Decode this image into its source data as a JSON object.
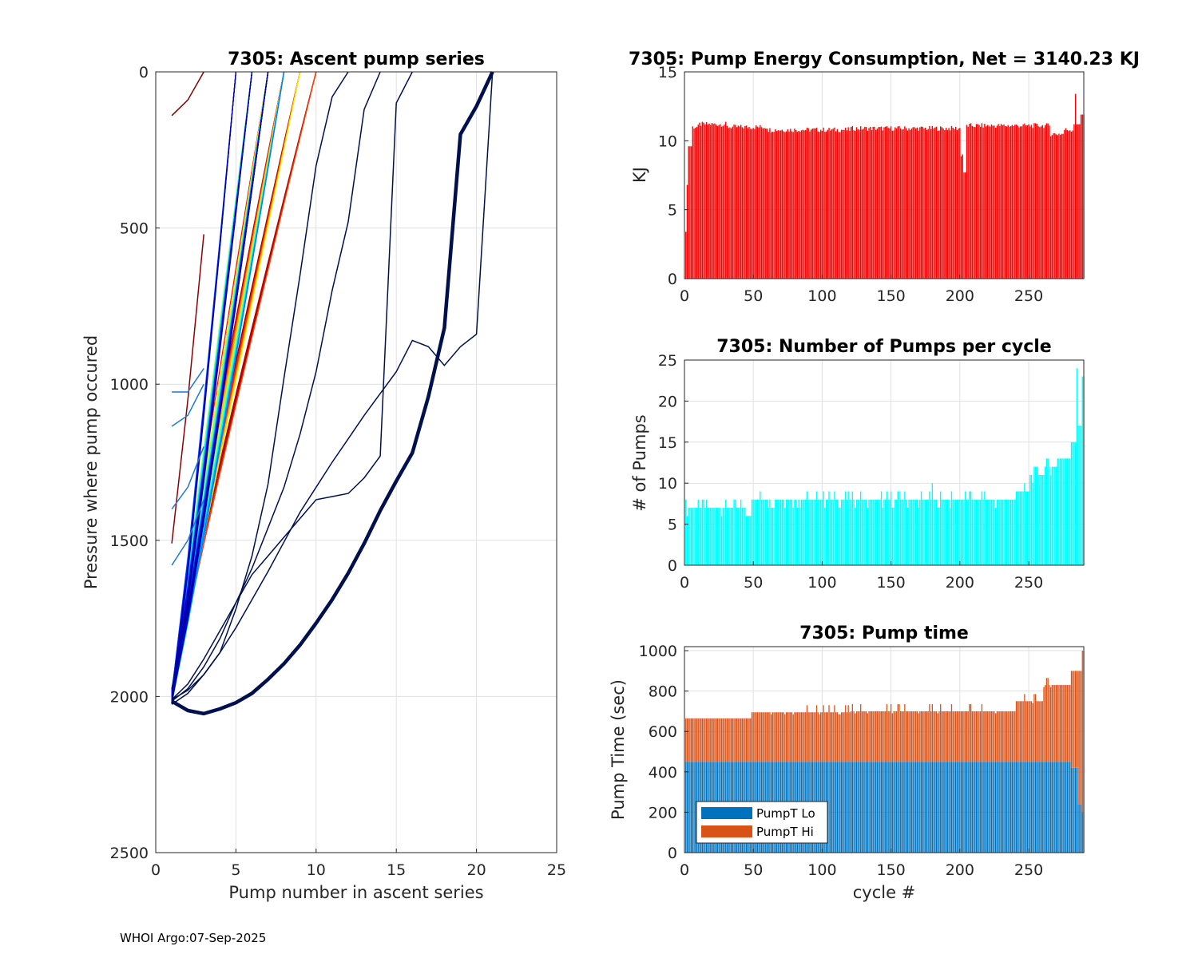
{
  "footer": "WHOI Argo:07-Sep-2025",
  "colors": {
    "energy": "#ff0000",
    "pumps": "#00ffff",
    "pump_lo": "#0072bd",
    "pump_hi": "#d95319",
    "thick_series": "#00104d",
    "grid": "#e1e1e1",
    "axis": "#262626"
  },
  "chart_data": [
    {
      "id": "ascent",
      "type": "line",
      "title": "7305: Ascent pump series",
      "xlabel": "Pump number in ascent series",
      "ylabel": "Pressure where pump occured",
      "xlim": [
        0,
        25
      ],
      "ylim": [
        0,
        2500
      ],
      "y_reversed": true,
      "xticks": [
        0,
        5,
        10,
        15,
        20,
        25
      ],
      "yticks": [
        0,
        500,
        1000,
        1500,
        2000,
        2500
      ],
      "grid": true,
      "colormap": "jet",
      "highlight_series": {
        "name": "widest series",
        "x": [
          1,
          2,
          3,
          4,
          5,
          6,
          7,
          8,
          9,
          10,
          11,
          12,
          13,
          14,
          15,
          16,
          17,
          18,
          19,
          20,
          21
        ],
        "y": [
          2015,
          2045,
          2055,
          2040,
          2020,
          1990,
          1945,
          1895,
          1835,
          1765,
          1690,
          1605,
          1510,
          1405,
          1310,
          1220,
          1040,
          820,
          200,
          110,
          0
        ]
      },
      "outlier_series": [
        {
          "x": [
            1,
            2,
            3,
            4,
            5,
            6,
            7,
            8,
            9,
            10,
            11,
            12,
            13,
            14,
            15,
            16,
            17,
            18,
            19,
            20,
            21
          ],
          "y": [
            2025,
            1990,
            1930,
            1860,
            1780,
            1690,
            1600,
            1505,
            1410,
            1330,
            1250,
            1175,
            1100,
            1030,
            960,
            860,
            880,
            940,
            880,
            840,
            0
          ]
        },
        {
          "x": [
            1,
            2,
            3,
            4,
            5,
            6,
            7,
            8,
            9,
            10,
            11,
            12,
            13,
            14,
            15,
            16
          ],
          "y": [
            2010,
            1960,
            1880,
            1790,
            1700,
            1610,
            1550,
            1490,
            1430,
            1370,
            1360,
            1350,
            1300,
            1230,
            100,
            0
          ]
        },
        {
          "x": [
            1,
            2,
            3,
            4,
            5,
            6,
            7,
            8,
            9,
            10,
            11,
            12,
            13,
            14
          ],
          "y": [
            2015,
            1975,
            1905,
            1815,
            1700,
            1590,
            1460,
            1330,
            1160,
            960,
            700,
            480,
            120,
            0
          ]
        },
        {
          "x": [
            1,
            2,
            3,
            4,
            5,
            6,
            7,
            8,
            9,
            10,
            11,
            12
          ],
          "y": [
            2010,
            1980,
            1930,
            1860,
            1720,
            1550,
            1320,
            980,
            650,
            300,
            80,
            0
          ]
        }
      ],
      "series_summary": "about 290 ascent series, one per cycle, colored by cycle number; most reach the surface after 5 to 9 pumps"
    },
    {
      "id": "energy",
      "type": "bar",
      "title": "7305: Pump Energy Consumption,  Net = 3140.23 KJ",
      "xlabel": "",
      "ylabel": "KJ",
      "xlim": [
        0,
        290
      ],
      "ylim": [
        0,
        15
      ],
      "xticks": [
        0,
        50,
        100,
        150,
        200,
        250
      ],
      "yticks": [
        0,
        5,
        10,
        15
      ],
      "grid": true,
      "net_total_kj": 3140.23,
      "segments": [
        {
          "from": 1,
          "to": 1,
          "value": 3.4
        },
        {
          "from": 2,
          "to": 2,
          "value": 6.8
        },
        {
          "from": 3,
          "to": 5,
          "value": 9.6
        },
        {
          "from": 6,
          "to": 10,
          "value": 11.0
        },
        {
          "from": 11,
          "to": 30,
          "value": 11.2
        },
        {
          "from": 31,
          "to": 60,
          "value": 11.0
        },
        {
          "from": 61,
          "to": 120,
          "value": 10.8
        },
        {
          "from": 121,
          "to": 200,
          "value": 10.9
        },
        {
          "from": 201,
          "to": 202,
          "value": 9.0
        },
        {
          "from": 203,
          "to": 204,
          "value": 7.7
        },
        {
          "from": 205,
          "to": 265,
          "value": 11.1
        },
        {
          "from": 266,
          "to": 275,
          "value": 10.5
        },
        {
          "from": 276,
          "to": 282,
          "value": 10.8
        },
        {
          "from": 283,
          "to": 283,
          "value": 11.2
        },
        {
          "from": 284,
          "to": 284,
          "value": 13.4
        },
        {
          "from": 285,
          "to": 287,
          "value": 11.2
        },
        {
          "from": 288,
          "to": 290,
          "value": 11.9
        }
      ]
    },
    {
      "id": "pumps",
      "type": "bar",
      "title": "7305: Number of Pumps per cycle",
      "xlabel": "",
      "ylabel": "# of Pumps",
      "xlim": [
        0,
        290
      ],
      "ylim": [
        0,
        25
      ],
      "xticks": [
        0,
        50,
        100,
        150,
        200,
        250
      ],
      "yticks": [
        0,
        5,
        10,
        15,
        20,
        25
      ],
      "grid": true,
      "segments": [
        {
          "from": 1,
          "to": 1,
          "value": 8
        },
        {
          "from": 2,
          "to": 44,
          "value": 7
        },
        {
          "from": 45,
          "to": 48,
          "value": 6
        },
        {
          "from": 49,
          "to": 240,
          "value": 8
        },
        {
          "from": 241,
          "to": 250,
          "value": 9
        },
        {
          "from": 251,
          "to": 260,
          "value": 11
        },
        {
          "from": 261,
          "to": 270,
          "value": 12
        },
        {
          "from": 271,
          "to": 280,
          "value": 13
        },
        {
          "from": 281,
          "to": 284,
          "value": 15
        },
        {
          "from": 285,
          "to": 285,
          "value": 24
        },
        {
          "from": 286,
          "to": 288,
          "value": 17
        },
        {
          "from": 289,
          "to": 290,
          "value": 23
        }
      ]
    },
    {
      "id": "pumptime",
      "type": "stacked-bar",
      "title": "7305: Pump time",
      "xlabel": "cycle #",
      "ylabel": "Pump Time (sec)",
      "xlim": [
        0,
        290
      ],
      "ylim": [
        0,
        1020
      ],
      "xticks": [
        0,
        50,
        100,
        150,
        200,
        250
      ],
      "yticks": [
        0,
        200,
        400,
        600,
        800,
        1000
      ],
      "grid": true,
      "legend": {
        "position": "bottom-left",
        "entries": [
          "PumpT Lo",
          "PumpT Hi"
        ]
      },
      "series": [
        {
          "name": "PumpT Lo",
          "segments": [
            {
              "from": 1,
              "to": 280,
              "value": 450
            },
            {
              "from": 281,
              "to": 285,
              "value": 420
            },
            {
              "from": 286,
              "to": 288,
              "value": 240
            },
            {
              "from": 289,
              "to": 290,
              "value": 200
            }
          ]
        },
        {
          "name": "PumpT Hi",
          "segments": [
            {
              "from": 1,
              "to": 48,
              "value": 215
            },
            {
              "from": 49,
              "to": 120,
              "value": 245
            },
            {
              "from": 121,
              "to": 240,
              "value": 250
            },
            {
              "from": 241,
              "to": 260,
              "value": 300
            },
            {
              "from": 261,
              "to": 280,
              "value": 380
            },
            {
              "from": 281,
              "to": 285,
              "value": 480
            },
            {
              "from": 286,
              "to": 288,
              "value": 660
            },
            {
              "from": 289,
              "to": 290,
              "value": 800
            }
          ]
        }
      ]
    }
  ]
}
